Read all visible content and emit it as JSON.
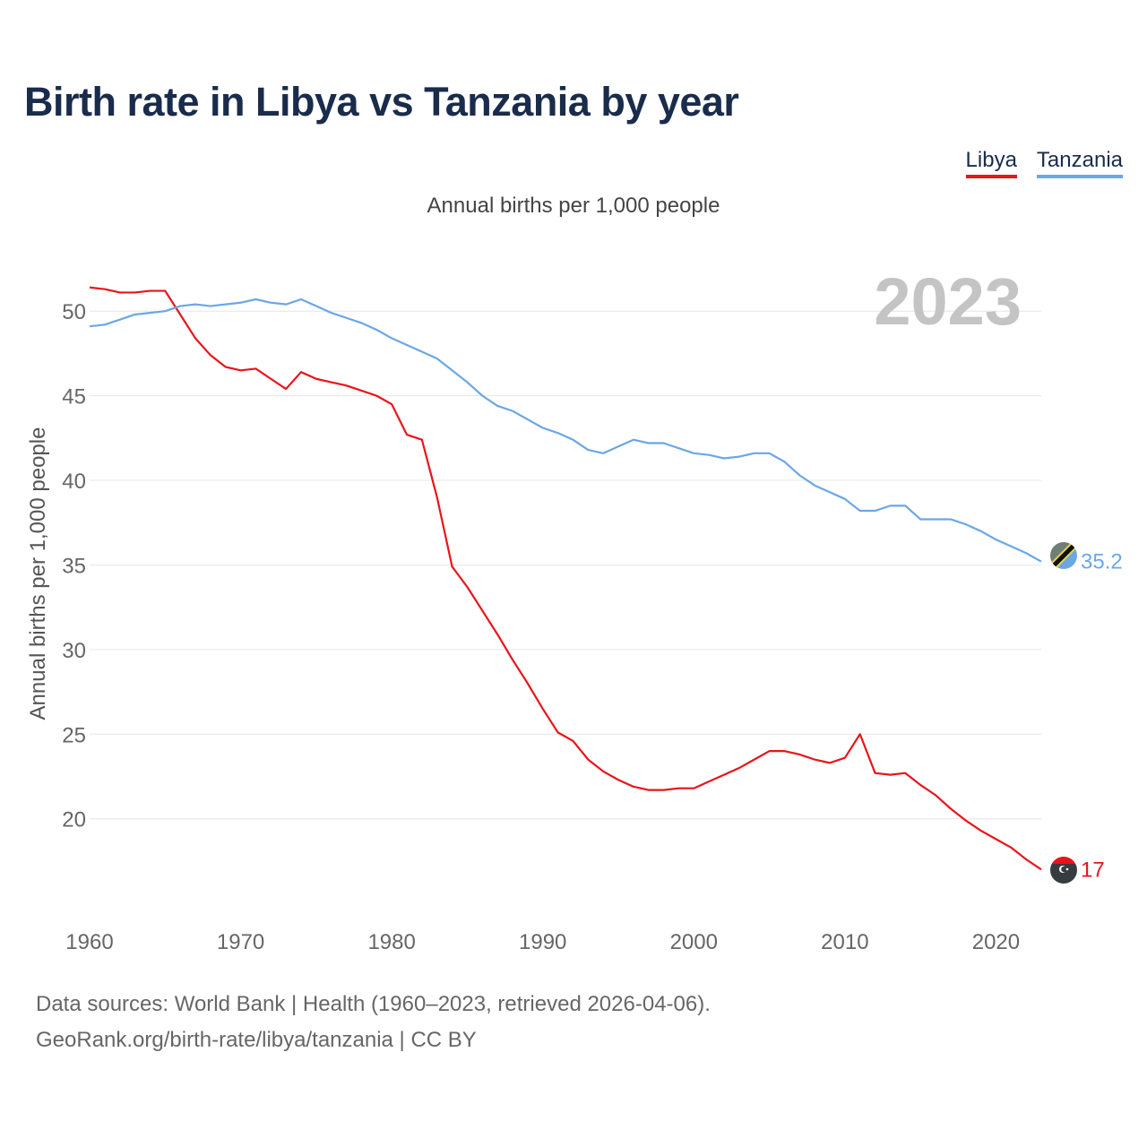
{
  "chart_data": {
    "type": "line",
    "title": "Birth rate in Libya vs Tanzania by year",
    "subtitle": "Annual births per 1,000 people",
    "ylabel": "Annual births per 1,000 people",
    "xlabel": "",
    "xlim": [
      1960,
      2023
    ],
    "ylim": [
      14.9,
      52.5
    ],
    "x_ticks": [
      1960,
      1970,
      1980,
      1990,
      2000,
      2010,
      2020
    ],
    "y_ticks": [
      20,
      25,
      30,
      35,
      40,
      45,
      50
    ],
    "grid": true,
    "year_watermark": "2023",
    "legend_position": "top-right",
    "x": [
      1960,
      1961,
      1962,
      1963,
      1964,
      1965,
      1966,
      1967,
      1968,
      1969,
      1970,
      1971,
      1972,
      1973,
      1974,
      1975,
      1976,
      1977,
      1978,
      1979,
      1980,
      1981,
      1982,
      1983,
      1984,
      1985,
      1986,
      1987,
      1988,
      1989,
      1990,
      1991,
      1992,
      1993,
      1994,
      1995,
      1996,
      1997,
      1998,
      1999,
      2000,
      2001,
      2002,
      2003,
      2004,
      2005,
      2006,
      2007,
      2008,
      2009,
      2010,
      2011,
      2012,
      2013,
      2014,
      2015,
      2016,
      2017,
      2018,
      2019,
      2020,
      2021,
      2022,
      2023
    ],
    "series": [
      {
        "name": "Libya",
        "color": "#e8141b",
        "end_label": "17",
        "values": [
          51.4,
          51.3,
          51.1,
          51.1,
          51.2,
          51.2,
          49.8,
          48.4,
          47.4,
          46.7,
          46.5,
          46.6,
          46.0,
          45.4,
          46.4,
          46.0,
          45.8,
          45.6,
          45.3,
          45.0,
          44.5,
          42.7,
          42.4,
          39.0,
          34.9,
          33.7,
          32.3,
          30.9,
          29.4,
          28.0,
          26.5,
          25.1,
          24.6,
          23.5,
          22.8,
          22.3,
          21.9,
          21.7,
          21.7,
          21.8,
          21.8,
          22.2,
          22.6,
          23.0,
          23.5,
          24.0,
          24.0,
          23.8,
          23.5,
          23.3,
          23.6,
          25.0,
          22.7,
          22.6,
          22.7,
          22.0,
          21.4,
          20.6,
          19.9,
          19.3,
          18.8,
          18.3,
          17.6,
          17.0
        ]
      },
      {
        "name": "Tanzania",
        "color": "#6ba7e6",
        "end_label": "35.2",
        "values": [
          49.1,
          49.2,
          49.5,
          49.8,
          49.9,
          50.0,
          50.3,
          50.4,
          50.3,
          50.4,
          50.5,
          50.7,
          50.5,
          50.4,
          50.7,
          50.3,
          49.9,
          49.6,
          49.3,
          48.9,
          48.4,
          48.0,
          47.6,
          47.2,
          46.5,
          45.8,
          45.0,
          44.4,
          44.1,
          43.6,
          43.1,
          42.8,
          42.4,
          41.8,
          41.6,
          42.0,
          42.4,
          42.2,
          42.2,
          41.9,
          41.6,
          41.5,
          41.3,
          41.4,
          41.6,
          41.6,
          41.1,
          40.3,
          39.7,
          39.3,
          38.9,
          38.2,
          38.2,
          38.5,
          38.5,
          37.7,
          37.7,
          37.7,
          37.4,
          37.0,
          36.5,
          36.1,
          35.7,
          35.2
        ]
      }
    ]
  },
  "legend": {
    "items": [
      "Libya",
      "Tanzania"
    ]
  },
  "source": {
    "line1": "Data sources: World Bank | Health (1960–2023, retrieved 2026-04-06).",
    "line2": "GeoRank.org/birth-rate/libya/tanzania | CC BY"
  }
}
